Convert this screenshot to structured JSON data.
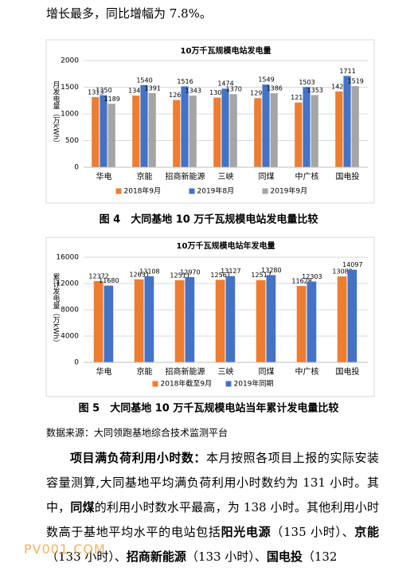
{
  "intro": "增长最多，同比增幅为 7.8%。",
  "chart_data": [
    {
      "type": "bar",
      "title": "10万千瓦规模电站发电量",
      "y_label": "月发电量（万kWh）",
      "categories": [
        "华电",
        "京能",
        "招商新能源",
        "三峡",
        "同煤",
        "中广核",
        "国电投"
      ],
      "series": [
        {
          "name": "2018年9月",
          "color": "#ED7D31",
          "values": [
            1313,
            1343,
            1260,
            1305,
            1295,
            1213,
            1420
          ]
        },
        {
          "name": "2019年8月",
          "color": "#4472C4",
          "values": [
            1350,
            1540,
            1516,
            1474,
            1549,
            1503,
            1711
          ]
        },
        {
          "name": "2019年9月",
          "color": "#A5A5A5",
          "values": [
            1189,
            1391,
            1343,
            1370,
            1386,
            1353,
            1519
          ]
        }
      ],
      "ylim": [
        0,
        2000
      ],
      "yticks": [
        0,
        500,
        1000,
        1500,
        2000
      ],
      "grid": true,
      "legend": "bottom"
    },
    {
      "type": "bar",
      "title": "10万千瓦规模电站年发电量",
      "y_label": "累计发电量（万kWh）",
      "categories": [
        "华电",
        "京能",
        "招商新能源",
        "三峡",
        "同煤",
        "中广核",
        "国电投"
      ],
      "series": [
        {
          "name": "2018年截至9月",
          "color": "#ED7D31",
          "values": [
            12372,
            12631,
            12511,
            12561,
            12517,
            11628,
            13082
          ]
        },
        {
          "name": "2019年同期",
          "color": "#4472C4",
          "values": [
            11680,
            13108,
            12970,
            13127,
            13280,
            12303,
            14097
          ]
        }
      ],
      "ylim": [
        0,
        16000
      ],
      "yticks": [
        0,
        4000,
        8000,
        12000,
        16000
      ],
      "grid": true,
      "legend": "bottom"
    }
  ],
  "captions": [
    "图 4　大同基地 10 万千瓦规模电站发电量比较",
    "图 5　大同基地 10 万千瓦规模电站当年累计发电量比较"
  ],
  "source": "数据来源：大同领跑基地综合技术监测平台",
  "paragraph": [
    {
      "text": "项目满负荷利用小时数：",
      "bold": true
    },
    {
      "text": "本月按照各项目上报的实际安装容量测算,大同基地平均满负荷利用小时数约为 131 小时。其中，",
      "bold": false
    },
    {
      "text": "同煤",
      "bold": true
    },
    {
      "text": "的利用小时数水平最高，为 138 小时。其他利用小时数高于基地平均水平的电站包括",
      "bold": false
    },
    {
      "text": "阳光电源",
      "bold": true
    },
    {
      "text": "（135 小时）、",
      "bold": false
    },
    {
      "text": "京能",
      "bold": true
    },
    {
      "text": "（133 小时）、",
      "bold": false
    },
    {
      "text": "招商新能源",
      "bold": true
    },
    {
      "text": "（133 小时）、",
      "bold": false
    },
    {
      "text": "国电投",
      "bold": true
    },
    {
      "text": "（132",
      "bold": false
    }
  ],
  "watermark": "PV001.COM"
}
